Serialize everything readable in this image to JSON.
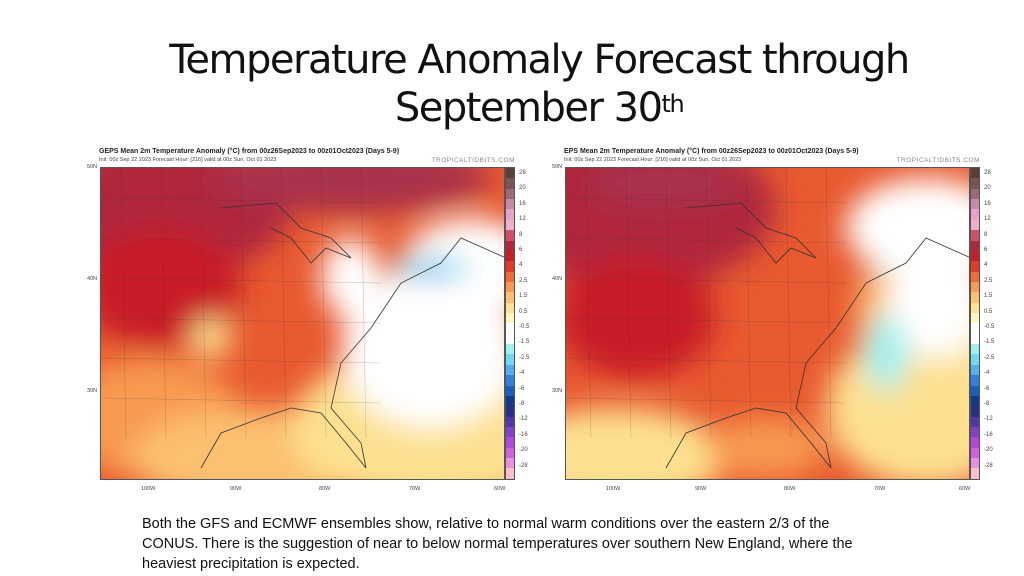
{
  "slide": {
    "title_main": "Temperature Anomaly  Forecast through",
    "title_line2": "September 30",
    "title_sup": "th",
    "body_text": "Both the GFS and ECMWF ensembles show, relative to normal warm conditions over the eastern 2/3 of the CONUS.  There is the suggestion of near to below normal temperatures over southern New England, where the heaviest precipitation is expected."
  },
  "maps": [
    {
      "title": "GEPS Mean 2m Temperature Anomaly (°C) from 00z26Sep2023 to 00z01Oct2023 (Days 5-9)",
      "subtitle": "Init: 00z Sep 22 2023   Forecast Hour: [216]   valid at 00z Sun, Oct 01 2023",
      "brand": "TROPICALTIDBITS.COM"
    },
    {
      "title": "EPS Mean 2m Temperature Anomaly (°C) from 00z26Sep2023 to 00z01Oct2023 (Days 5-9)",
      "subtitle": "Init: 00z Sep 22 2023   Forecast Hour: [216]   valid at 00z Sun, Oct 01 2023",
      "brand": "TROPICALTIDBITS.COM"
    }
  ],
  "lat_labels": [
    "50N",
    "40N",
    "30N"
  ],
  "lon_labels": [
    "100W",
    "90W",
    "80W",
    "70W",
    "60W"
  ],
  "colorbar": {
    "labels": [
      "28",
      "20",
      "16",
      "12",
      "8",
      "6",
      "4",
      "2.5",
      "1.5",
      "0.5",
      "-0.5",
      "-1.5",
      "-2.5",
      "-4",
      "-6",
      "-8",
      "-12",
      "-16",
      "-20",
      "-28"
    ],
    "colors": [
      "#5a4034",
      "#7a5450",
      "#9a6a78",
      "#c48aa8",
      "#e6a2c8",
      "#f0b0cc",
      "#d05068",
      "#b0283c",
      "#c81e28",
      "#e23c28",
      "#f06a38",
      "#f89a50",
      "#fcc070",
      "#fde090",
      "#fff6c0",
      "#ffffff",
      "#ffffff",
      "#a0f0f0",
      "#70d8f0",
      "#50b0f0",
      "#3080e0",
      "#1860c0",
      "#103c90",
      "#28308a",
      "#5038a8",
      "#8040c8",
      "#b048d8",
      "#d060e0",
      "#e890e0",
      "#f8c0c8"
    ]
  }
}
